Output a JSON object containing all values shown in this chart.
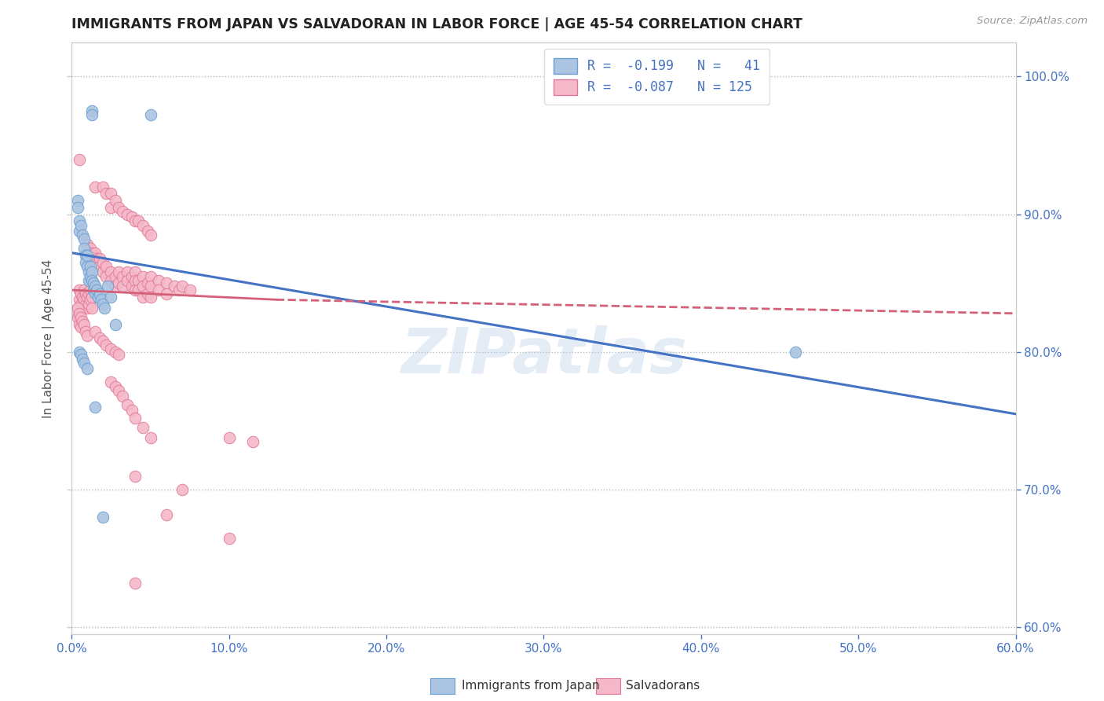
{
  "title": "IMMIGRANTS FROM JAPAN VS SALVADORAN IN LABOR FORCE | AGE 45-54 CORRELATION CHART",
  "source": "Source: ZipAtlas.com",
  "ylabel": "In Labor Force | Age 45-54",
  "xlim": [
    0.0,
    0.6
  ],
  "ylim": [
    0.595,
    1.025
  ],
  "xticks": [
    0.0,
    0.1,
    0.2,
    0.3,
    0.4,
    0.5,
    0.6
  ],
  "yticks": [
    0.6,
    0.7,
    0.8,
    0.9,
    1.0
  ],
  "ytick_labels": [
    "60.0%",
    "70.0%",
    "80.0%",
    "90.0%",
    "100.0%"
  ],
  "xtick_labels": [
    "0.0%",
    "10.0%",
    "20.0%",
    "30.0%",
    "40.0%",
    "50.0%",
    "60.0%"
  ],
  "watermark": "ZIPatlas",
  "japan_color": "#aac4e2",
  "japan_edge_color": "#6a9fd0",
  "salvador_color": "#f5b8c8",
  "salvador_edge_color": "#e07898",
  "japan_trendline_color": "#4472c4",
  "salvador_trendline_color": "#d4607a",
  "japan_trendline": [
    [
      0.0,
      0.872
    ],
    [
      0.6,
      0.755
    ]
  ],
  "salvador_trendline_solid": [
    [
      0.0,
      0.845
    ],
    [
      0.13,
      0.838
    ]
  ],
  "salvador_trendline_dash": [
    [
      0.13,
      0.838
    ],
    [
      0.6,
      0.828
    ]
  ],
  "japan_points": [
    [
      0.013,
      0.975
    ],
    [
      0.013,
      0.972
    ],
    [
      0.05,
      0.972
    ],
    [
      0.004,
      0.91
    ],
    [
      0.004,
      0.905
    ],
    [
      0.005,
      0.895
    ],
    [
      0.005,
      0.888
    ],
    [
      0.006,
      0.892
    ],
    [
      0.007,
      0.885
    ],
    [
      0.008,
      0.882
    ],
    [
      0.008,
      0.875
    ],
    [
      0.009,
      0.87
    ],
    [
      0.009,
      0.865
    ],
    [
      0.01,
      0.87
    ],
    [
      0.01,
      0.862
    ],
    [
      0.011,
      0.858
    ],
    [
      0.011,
      0.852
    ],
    [
      0.012,
      0.862
    ],
    [
      0.012,
      0.855
    ],
    [
      0.013,
      0.858
    ],
    [
      0.013,
      0.852
    ],
    [
      0.014,
      0.85
    ],
    [
      0.014,
      0.845
    ],
    [
      0.015,
      0.848
    ],
    [
      0.015,
      0.843
    ],
    [
      0.016,
      0.845
    ],
    [
      0.017,
      0.84
    ],
    [
      0.018,
      0.842
    ],
    [
      0.019,
      0.838
    ],
    [
      0.02,
      0.835
    ],
    [
      0.021,
      0.832
    ],
    [
      0.023,
      0.848
    ],
    [
      0.025,
      0.84
    ],
    [
      0.028,
      0.82
    ],
    [
      0.005,
      0.8
    ],
    [
      0.006,
      0.798
    ],
    [
      0.007,
      0.795
    ],
    [
      0.008,
      0.792
    ],
    [
      0.01,
      0.788
    ],
    [
      0.015,
      0.76
    ],
    [
      0.02,
      0.68
    ],
    [
      0.46,
      0.8
    ]
  ],
  "salvador_points": [
    [
      0.005,
      0.94
    ],
    [
      0.015,
      0.92
    ],
    [
      0.02,
      0.92
    ],
    [
      0.022,
      0.915
    ],
    [
      0.025,
      0.915
    ],
    [
      0.025,
      0.905
    ],
    [
      0.028,
      0.91
    ],
    [
      0.03,
      0.905
    ],
    [
      0.032,
      0.902
    ],
    [
      0.035,
      0.9
    ],
    [
      0.038,
      0.898
    ],
    [
      0.04,
      0.895
    ],
    [
      0.042,
      0.895
    ],
    [
      0.045,
      0.892
    ],
    [
      0.048,
      0.888
    ],
    [
      0.05,
      0.885
    ],
    [
      0.01,
      0.878
    ],
    [
      0.012,
      0.875
    ],
    [
      0.013,
      0.872
    ],
    [
      0.014,
      0.87
    ],
    [
      0.015,
      0.872
    ],
    [
      0.015,
      0.865
    ],
    [
      0.016,
      0.868
    ],
    [
      0.017,
      0.865
    ],
    [
      0.018,
      0.868
    ],
    [
      0.018,
      0.862
    ],
    [
      0.02,
      0.865
    ],
    [
      0.02,
      0.858
    ],
    [
      0.022,
      0.862
    ],
    [
      0.022,
      0.855
    ],
    [
      0.025,
      0.858
    ],
    [
      0.025,
      0.852
    ],
    [
      0.028,
      0.855
    ],
    [
      0.028,
      0.848
    ],
    [
      0.03,
      0.858
    ],
    [
      0.03,
      0.85
    ],
    [
      0.032,
      0.855
    ],
    [
      0.032,
      0.848
    ],
    [
      0.035,
      0.858
    ],
    [
      0.035,
      0.852
    ],
    [
      0.038,
      0.855
    ],
    [
      0.038,
      0.848
    ],
    [
      0.04,
      0.858
    ],
    [
      0.04,
      0.852
    ],
    [
      0.04,
      0.845
    ],
    [
      0.042,
      0.852
    ],
    [
      0.042,
      0.845
    ],
    [
      0.045,
      0.855
    ],
    [
      0.045,
      0.848
    ],
    [
      0.045,
      0.84
    ],
    [
      0.048,
      0.85
    ],
    [
      0.048,
      0.842
    ],
    [
      0.05,
      0.855
    ],
    [
      0.05,
      0.848
    ],
    [
      0.05,
      0.84
    ],
    [
      0.055,
      0.852
    ],
    [
      0.055,
      0.845
    ],
    [
      0.06,
      0.85
    ],
    [
      0.06,
      0.842
    ],
    [
      0.065,
      0.848
    ],
    [
      0.068,
      0.845
    ],
    [
      0.07,
      0.848
    ],
    [
      0.075,
      0.845
    ],
    [
      0.005,
      0.845
    ],
    [
      0.005,
      0.838
    ],
    [
      0.006,
      0.842
    ],
    [
      0.006,
      0.835
    ],
    [
      0.007,
      0.84
    ],
    [
      0.007,
      0.832
    ],
    [
      0.008,
      0.845
    ],
    [
      0.008,
      0.838
    ],
    [
      0.009,
      0.842
    ],
    [
      0.009,
      0.835
    ],
    [
      0.01,
      0.84
    ],
    [
      0.01,
      0.832
    ],
    [
      0.011,
      0.842
    ],
    [
      0.011,
      0.835
    ],
    [
      0.012,
      0.845
    ],
    [
      0.012,
      0.838
    ],
    [
      0.013,
      0.84
    ],
    [
      0.013,
      0.832
    ],
    [
      0.002,
      0.83
    ],
    [
      0.003,
      0.828
    ],
    [
      0.004,
      0.832
    ],
    [
      0.004,
      0.825
    ],
    [
      0.005,
      0.828
    ],
    [
      0.005,
      0.82
    ],
    [
      0.006,
      0.825
    ],
    [
      0.006,
      0.818
    ],
    [
      0.007,
      0.822
    ],
    [
      0.008,
      0.82
    ],
    [
      0.009,
      0.815
    ],
    [
      0.01,
      0.812
    ],
    [
      0.015,
      0.815
    ],
    [
      0.018,
      0.81
    ],
    [
      0.02,
      0.808
    ],
    [
      0.022,
      0.805
    ],
    [
      0.025,
      0.802
    ],
    [
      0.028,
      0.8
    ],
    [
      0.03,
      0.798
    ],
    [
      0.025,
      0.778
    ],
    [
      0.028,
      0.775
    ],
    [
      0.03,
      0.772
    ],
    [
      0.032,
      0.768
    ],
    [
      0.035,
      0.762
    ],
    [
      0.038,
      0.758
    ],
    [
      0.04,
      0.752
    ],
    [
      0.045,
      0.745
    ],
    [
      0.05,
      0.738
    ],
    [
      0.1,
      0.738
    ],
    [
      0.115,
      0.735
    ],
    [
      0.04,
      0.71
    ],
    [
      0.07,
      0.7
    ],
    [
      0.1,
      0.665
    ],
    [
      0.04,
      0.632
    ],
    [
      0.06,
      0.682
    ]
  ]
}
